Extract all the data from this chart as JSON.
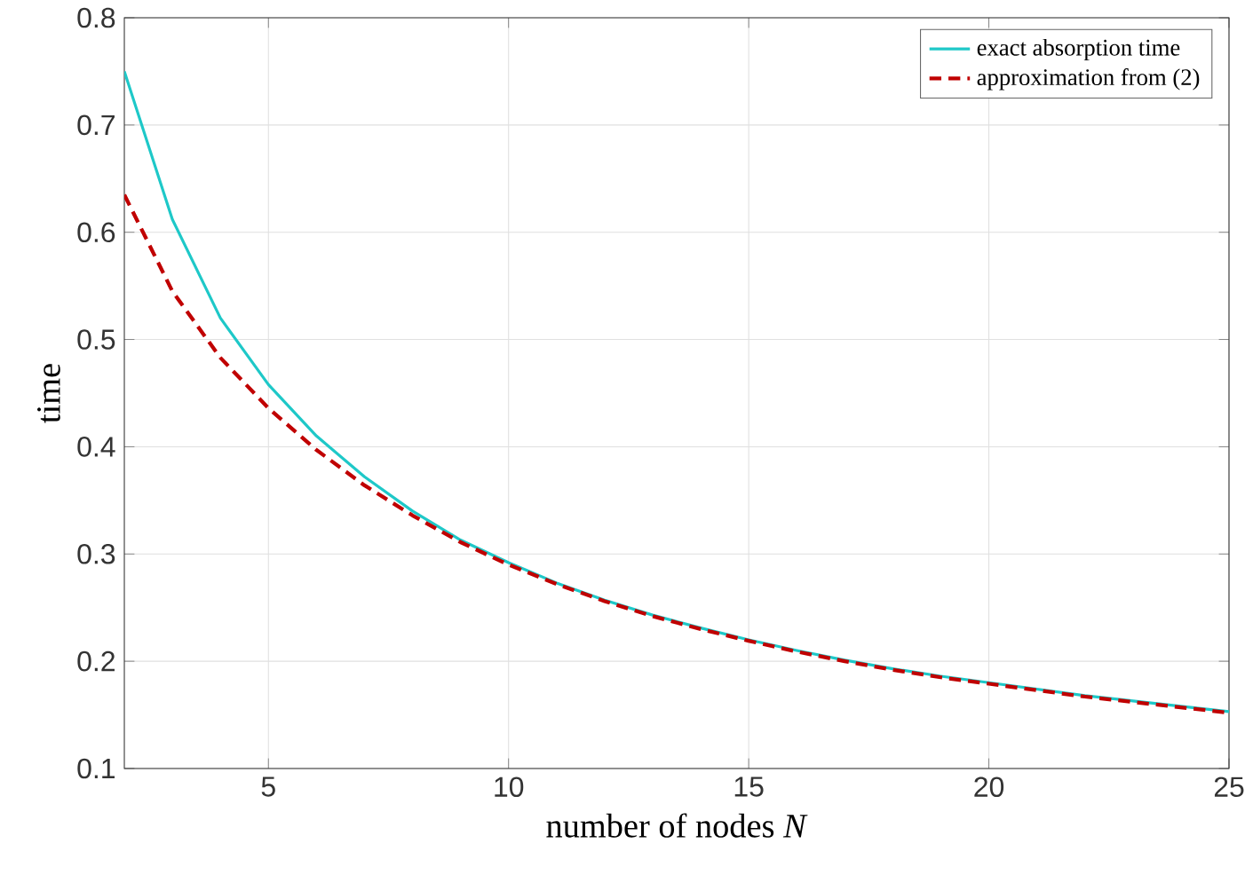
{
  "chart_data": {
    "type": "line",
    "xlabel": "number of nodes *N*",
    "ylabel": "time",
    "x": [
      2,
      3,
      4,
      5,
      6,
      7,
      8,
      9,
      10,
      11,
      12,
      13,
      14,
      15,
      16,
      17,
      18,
      19,
      20,
      21,
      22,
      23,
      24,
      25
    ],
    "series": [
      {
        "name": "exact absorption time",
        "color": "#1ec8c8",
        "line_style": "solid",
        "values": [
          0.75,
          0.612,
          0.52,
          0.458,
          0.41,
          0.372,
          0.34,
          0.313,
          0.292,
          0.273,
          0.257,
          0.243,
          0.231,
          0.22,
          0.21,
          0.201,
          0.193,
          0.186,
          0.18,
          0.174,
          0.168,
          0.163,
          0.158,
          0.153
        ]
      },
      {
        "name": "approximation from (2)",
        "color": "#c00000",
        "line_style": "dashed",
        "values": [
          0.635,
          0.545,
          0.483,
          0.436,
          0.397,
          0.364,
          0.336,
          0.311,
          0.29,
          0.272,
          0.256,
          0.242,
          0.23,
          0.219,
          0.209,
          0.2,
          0.192,
          0.185,
          0.179,
          0.173,
          0.167,
          0.162,
          0.157,
          0.152
        ]
      }
    ],
    "xlim": [
      2,
      25
    ],
    "ylim": [
      0.1,
      0.8
    ],
    "xticks": [
      5,
      10,
      15,
      20,
      25
    ],
    "yticks": [
      0.1,
      0.2,
      0.3,
      0.4,
      0.5,
      0.6,
      0.7,
      0.8
    ],
    "grid": true,
    "legend": "top right",
    "marker": "none"
  }
}
